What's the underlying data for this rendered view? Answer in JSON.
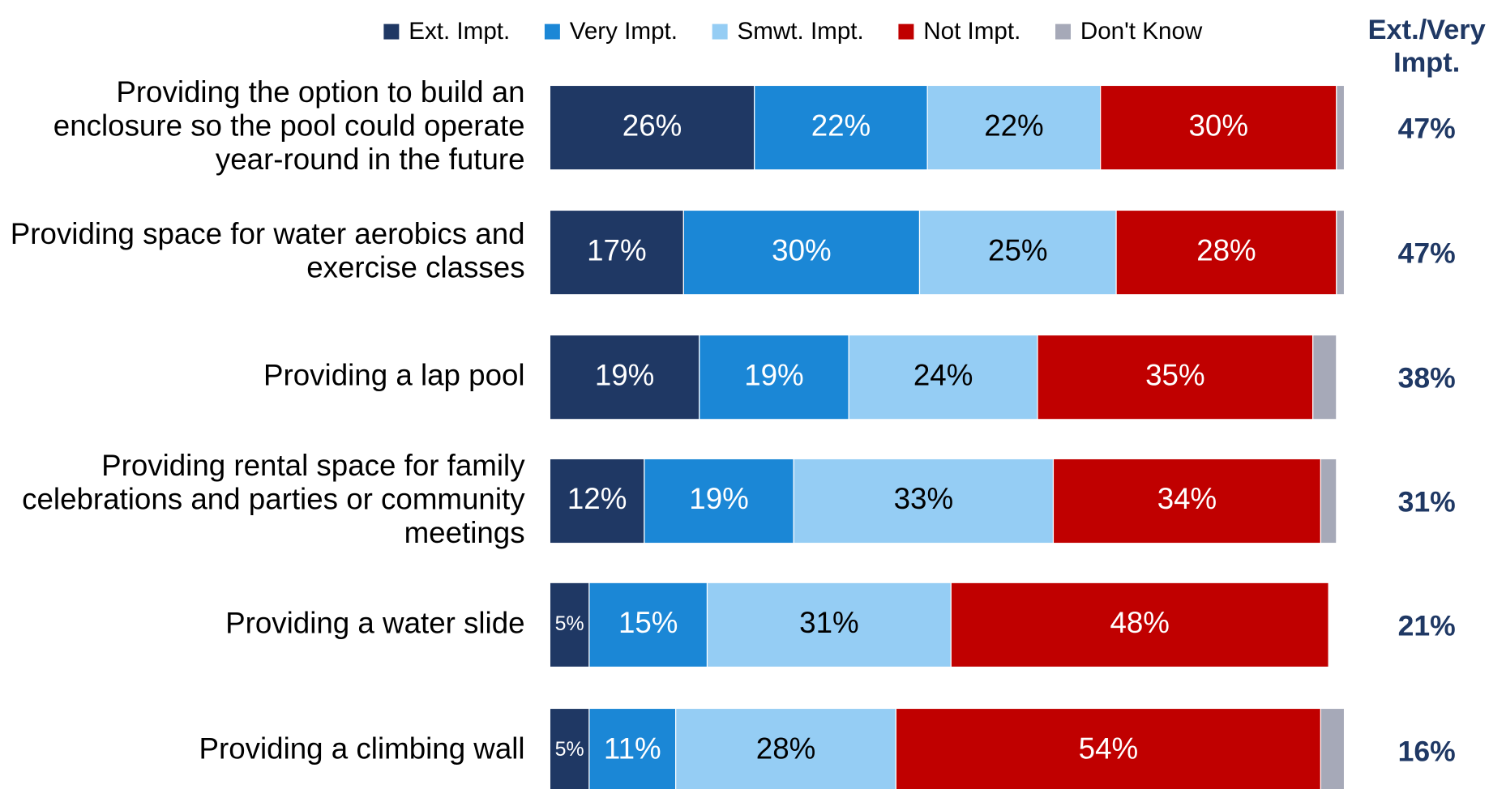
{
  "chart_data": {
    "type": "stacked-bar-horizontal",
    "categories": [
      "Providing the option to build an enclosure so the pool could operate year-round in the future",
      "Providing space for water aerobics and exercise classes",
      "Providing a lap pool",
      "Providing rental space for family celebrations and parties or community meetings",
      "Providing a water slide",
      "Providing a climbing wall"
    ],
    "xlim": [
      0,
      100
    ],
    "series": [
      {
        "name": "Ext. Impt.",
        "color": "#1f3864",
        "values": [
          26,
          17,
          19,
          12,
          5,
          5
        ],
        "value_labels": [
          "26%",
          "17%",
          "19%",
          "12%",
          "5%",
          "5%"
        ]
      },
      {
        "name": "Very Impt.",
        "color": "#1b87d6",
        "values": [
          22,
          30,
          19,
          19,
          15,
          11
        ],
        "value_labels": [
          "22%",
          "30%",
          "19%",
          "19%",
          "15%",
          "11%"
        ]
      },
      {
        "name": "Smwt. Impt.",
        "color": "#95cdf4",
        "values": [
          22,
          25,
          24,
          33,
          31,
          28
        ],
        "value_labels": [
          "22%",
          "25%",
          "24%",
          "33%",
          "31%",
          "28%"
        ]
      },
      {
        "name": "Not Impt.",
        "color": "#c00000",
        "values": [
          30,
          28,
          35,
          34,
          48,
          54
        ],
        "value_labels": [
          "30%",
          "28%",
          "35%",
          "34%",
          "48%",
          "54%"
        ]
      },
      {
        "name": "Don't Know",
        "color": "#a6a9b8",
        "values": [
          1,
          1,
          3,
          2,
          0,
          3
        ]
      }
    ],
    "summary": {
      "title": "Ext./Very Impt.",
      "color": "#1f3864",
      "values": [
        47,
        47,
        38,
        31,
        21,
        16
      ],
      "value_labels": [
        "47%",
        "47%",
        "38%",
        "31%",
        "21%",
        "16%"
      ]
    }
  }
}
